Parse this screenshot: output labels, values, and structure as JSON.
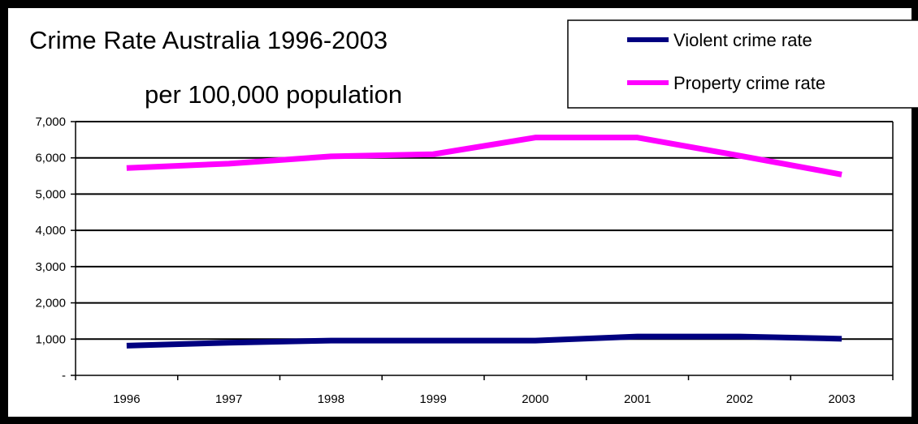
{
  "chart_data": {
    "type": "line",
    "title": "Crime Rate Australia 1996-2003",
    "subtitle": "per 100,000 population",
    "categories": [
      "1996",
      "1997",
      "1998",
      "1999",
      "2000",
      "2001",
      "2002",
      "2003"
    ],
    "series": [
      {
        "name": "Violent crime rate",
        "color": "#000080",
        "values": [
          820,
          900,
          960,
          960,
          960,
          1070,
          1070,
          1010
        ]
      },
      {
        "name": "Property crime rate",
        "color": "#ff00ff",
        "values": [
          5720,
          5840,
          6040,
          6100,
          6560,
          6560,
          6060,
          5540
        ]
      }
    ],
    "y_ticks": [
      "-",
      "1,000",
      "2,000",
      "3,000",
      "4,000",
      "5,000",
      "6,000",
      "7,000"
    ],
    "ylim": [
      0,
      7000
    ],
    "xlabel": "",
    "ylabel": "",
    "grid": true,
    "legend_position": "top-right"
  }
}
